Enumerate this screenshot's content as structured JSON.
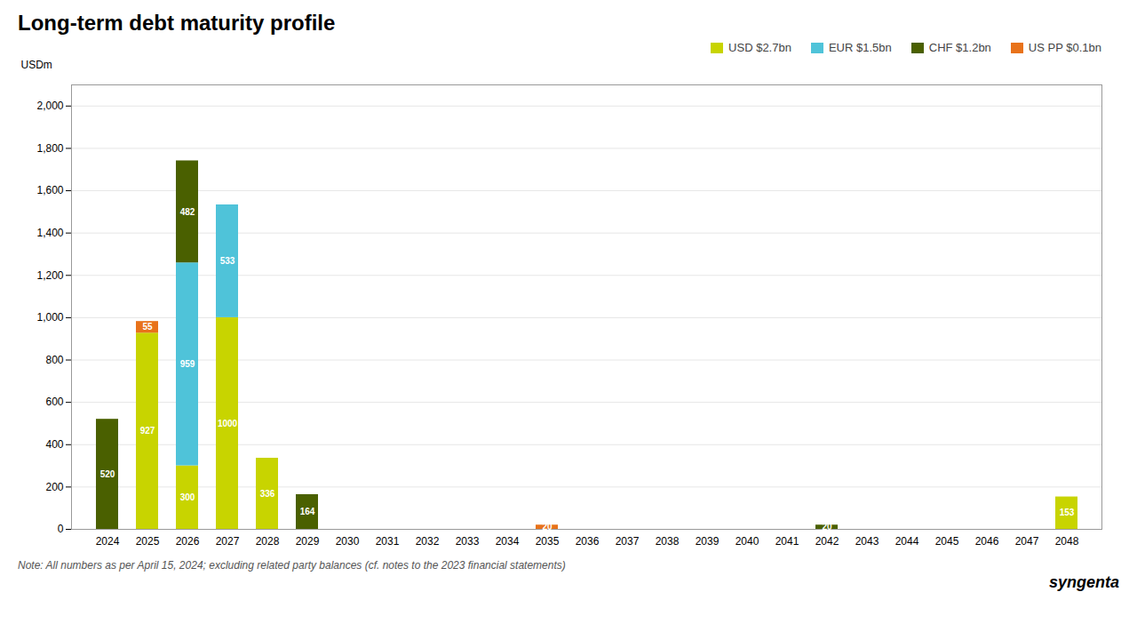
{
  "chart_data": {
    "type": "bar",
    "title": "Long-term debt maturity profile",
    "ylabel": "USDm",
    "categories": [
      "2024",
      "2025",
      "2026",
      "2027",
      "2028",
      "2029",
      "2030",
      "2031",
      "2032",
      "2033",
      "2034",
      "2035",
      "2036",
      "2037",
      "2038",
      "2039",
      "2040",
      "2041",
      "2042",
      "2043",
      "2044",
      "2045",
      "2046",
      "2047",
      "2048"
    ],
    "series": [
      {
        "name": "USD $2.7bn",
        "color": "#C8D400",
        "values": [
          0,
          927,
          300,
          1000,
          336,
          0,
          0,
          0,
          0,
          0,
          0,
          0,
          0,
          0,
          0,
          0,
          0,
          0,
          0,
          0,
          0,
          0,
          0,
          0,
          153
        ]
      },
      {
        "name": "EUR $1.5bn",
        "color": "#4FC3D9",
        "values": [
          0,
          0,
          959,
          533,
          0,
          0,
          0,
          0,
          0,
          0,
          0,
          0,
          0,
          0,
          0,
          0,
          0,
          0,
          0,
          0,
          0,
          0,
          0,
          0,
          0
        ]
      },
      {
        "name": "CHF $1.2bn",
        "color": "#4A6000",
        "values": [
          520,
          0,
          482,
          0,
          0,
          164,
          0,
          0,
          0,
          0,
          0,
          0,
          0,
          0,
          0,
          0,
          0,
          0,
          20,
          0,
          0,
          0,
          0,
          0,
          0
        ]
      },
      {
        "name": "US PP $0.1bn",
        "color": "#E8721A",
        "values": [
          0,
          55,
          0,
          0,
          0,
          0,
          0,
          0,
          0,
          0,
          0,
          20,
          0,
          0,
          0,
          0,
          0,
          0,
          0,
          0,
          0,
          0,
          0,
          0,
          0
        ]
      }
    ],
    "stacked": true,
    "data_labels": true,
    "ylim": [
      0,
      2100
    ],
    "yticks": [
      0,
      200,
      400,
      600,
      800,
      {
        "value": 1000,
        "label": "1,000"
      },
      {
        "value": 1200,
        "label": "1,200"
      },
      {
        "value": 1400,
        "label": "1,400"
      },
      {
        "value": 1600,
        "label": "1,600"
      },
      {
        "value": 1800,
        "label": "1,800"
      },
      {
        "value": 2000,
        "label": "2,000"
      }
    ],
    "grid": true,
    "legend": "upper right",
    "annotations": [
      "Note: All numbers as per April 15, 2024; excluding related party balances (cf. notes to the 2023 financial statements)",
      "syngenta"
    ]
  }
}
